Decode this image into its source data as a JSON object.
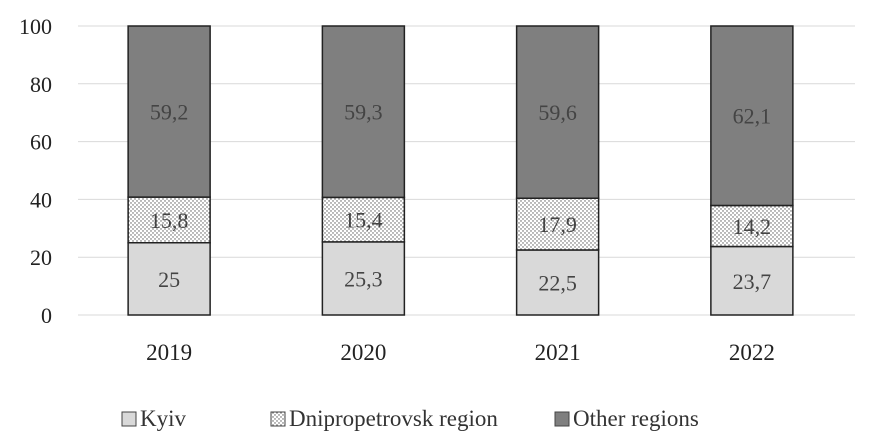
{
  "chart_data": {
    "type": "bar",
    "stacked": true,
    "title": "",
    "xlabel": "",
    "ylabel": "",
    "ylim": [
      0,
      100
    ],
    "yticks": [
      0,
      20,
      40,
      60,
      80,
      100
    ],
    "grid": true,
    "legend_position": "bottom",
    "categories": [
      "2019",
      "2020",
      "2021",
      "2022"
    ],
    "series": [
      {
        "name": "Kyiv",
        "values": [
          25,
          25.3,
          22.5,
          23.7
        ],
        "labels": [
          "25",
          "25,3",
          "22,5",
          "23,7"
        ],
        "color": "#d9d9d9",
        "pattern": "solid"
      },
      {
        "name": "Dnipropetrovsk region",
        "values": [
          15.8,
          15.4,
          17.9,
          14.2
        ],
        "labels": [
          "15,8",
          "15,4",
          "17,9",
          "14,2"
        ],
        "color": "#ffffff",
        "pattern": "dotted"
      },
      {
        "name": "Other regions",
        "values": [
          59.2,
          59.3,
          59.6,
          62.1
        ],
        "labels": [
          "59,2",
          "59,3",
          "59,6",
          "62,1"
        ],
        "color": "#7f7f7f",
        "pattern": "solid"
      }
    ]
  }
}
